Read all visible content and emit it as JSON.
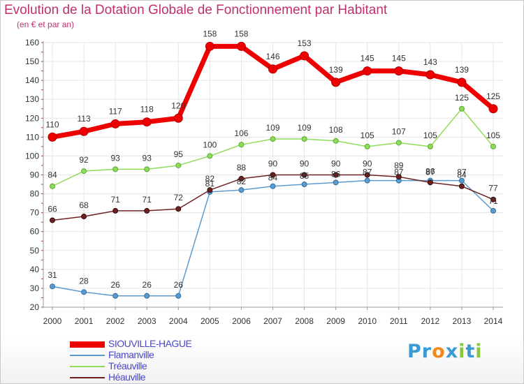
{
  "chart_data": {
    "type": "line",
    "title": "Evolution de la Dotation Globale de Fonctionnement par Habitant",
    "subtitle": "(en € et par an)",
    "categories": [
      "2000",
      "2001",
      "2002",
      "2003",
      "2004",
      "2005",
      "2006",
      "2007",
      "2008",
      "2009",
      "2010",
      "2011",
      "2012",
      "2013",
      "2014"
    ],
    "ylim": [
      20,
      160
    ],
    "yticks": [
      20,
      30,
      40,
      50,
      60,
      70,
      80,
      90,
      100,
      110,
      120,
      130,
      140,
      150,
      160
    ],
    "grid": true,
    "legend_position": "bottom-left",
    "series": [
      {
        "name": "SIOUVILLE-HAGUE",
        "color": "#ee0000",
        "values": [
          110,
          113,
          117,
          118,
          120,
          158,
          158,
          146,
          153,
          139,
          145,
          145,
          143,
          139,
          125
        ]
      },
      {
        "name": "Flamanville",
        "color": "#5b9bd0",
        "values": [
          31,
          28,
          26,
          26,
          26,
          81,
          82,
          84,
          85,
          86,
          87,
          87,
          87,
          87,
          71
        ]
      },
      {
        "name": "Tréauville",
        "color": "#8fdc5a",
        "values": [
          84,
          92,
          93,
          93,
          95,
          100,
          106,
          109,
          109,
          108,
          105,
          107,
          105,
          125,
          105
        ]
      },
      {
        "name": "Héauville",
        "color": "#6e2020",
        "values": [
          66,
          68,
          71,
          71,
          72,
          82,
          88,
          90,
          90,
          90,
          90,
          89,
          86,
          84,
          77
        ]
      }
    ]
  },
  "logo": {
    "letters": [
      {
        "ch": "P",
        "color": "#3a9bd5"
      },
      {
        "ch": "r",
        "color": "#3a9bd5"
      },
      {
        "ch": "o",
        "color": "#f08a1c"
      },
      {
        "ch": "x",
        "color": "#3a9bd5"
      },
      {
        "ch": "i",
        "color": "#8cc63e"
      },
      {
        "ch": "t",
        "color": "#3a9bd5"
      },
      {
        "ch": "i",
        "color": "#8cc63e"
      }
    ]
  }
}
